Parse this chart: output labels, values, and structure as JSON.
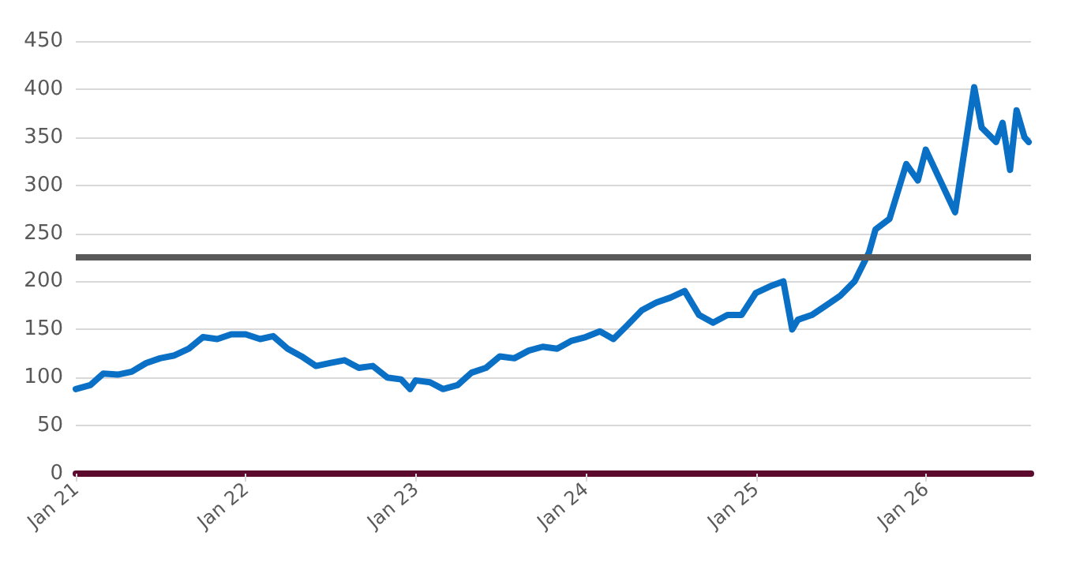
{
  "chart_data": {
    "type": "line",
    "x": [
      "2021-01-01",
      "2021-02-01",
      "2021-03-01",
      "2021-04-01",
      "2021-05-01",
      "2021-06-01",
      "2021-07-01",
      "2021-08-01",
      "2021-09-01",
      "2021-10-01",
      "2021-11-01",
      "2021-12-01",
      "2022-01-01",
      "2022-02-01",
      "2022-03-01",
      "2022-04-01",
      "2022-05-01",
      "2022-06-01",
      "2022-07-01",
      "2022-08-01",
      "2022-09-01",
      "2022-10-01",
      "2022-11-01",
      "2022-12-01",
      "2022-12-20",
      "2023-01-01",
      "2023-02-01",
      "2023-03-01",
      "2023-04-01",
      "2023-05-01",
      "2023-06-01",
      "2023-07-01",
      "2023-08-01",
      "2023-09-01",
      "2023-10-01",
      "2023-11-01",
      "2023-12-01",
      "2024-01-01",
      "2024-02-01",
      "2024-03-01",
      "2024-04-01",
      "2024-05-01",
      "2024-06-01",
      "2024-07-01",
      "2024-08-01",
      "2024-09-01",
      "2024-10-01",
      "2024-11-01",
      "2024-12-01",
      "2025-01-01",
      "2025-02-01",
      "2025-03-01",
      "2025-03-20",
      "2025-04-01",
      "2025-05-01",
      "2025-06-01",
      "2025-07-01",
      "2025-08-01",
      "2025-09-01",
      "2025-09-15",
      "2025-10-15",
      "2025-11-20",
      "2025-12-15",
      "2026-01-01",
      "2026-02-01",
      "2026-03-05",
      "2026-03-20",
      "2026-04-15",
      "2026-05-01",
      "2026-06-01",
      "2026-06-15",
      "2026-07-01",
      "2026-07-15",
      "2026-08-01",
      "2026-08-10"
    ],
    "series": [
      {
        "color": "#0a70c6",
        "values": [
          88,
          92,
          104,
          103,
          106,
          115,
          120,
          123,
          130,
          142,
          140,
          145,
          145,
          140,
          143,
          130,
          122,
          112,
          115,
          118,
          110,
          112,
          100,
          98,
          88,
          97,
          95,
          88,
          92,
          105,
          110,
          122,
          120,
          128,
          132,
          130,
          138,
          142,
          148,
          140,
          155,
          170,
          178,
          183,
          190,
          165,
          157,
          165,
          165,
          188,
          195,
          200,
          150,
          160,
          165,
          175,
          185,
          200,
          230,
          254,
          265,
          322,
          305,
          337,
          305,
          272,
          320,
          402,
          360,
          345,
          365,
          316,
          378,
          350,
          345
        ]
      }
    ],
    "xlim": [
      "2021-01-01",
      "2026-08-15"
    ],
    "xticks": [
      {
        "value": "2021-01-01",
        "label": "Jan 21"
      },
      {
        "value": "2022-01-01",
        "label": "Jan 22"
      },
      {
        "value": "2023-01-01",
        "label": "Jan 23"
      },
      {
        "value": "2024-01-01",
        "label": "Jan 24"
      },
      {
        "value": "2025-01-01",
        "label": "Jan 25"
      },
      {
        "value": "2026-01-01",
        "label": "Jan 26"
      }
    ],
    "ylim": [
      0,
      450
    ],
    "yticks": [
      0,
      50,
      100,
      150,
      200,
      250,
      300,
      350,
      400,
      450
    ],
    "grid": "y",
    "marker": "none",
    "line_style": "solid",
    "ref_lines": [
      {
        "axis": "y",
        "value": 225,
        "color": "#595959"
      }
    ]
  }
}
